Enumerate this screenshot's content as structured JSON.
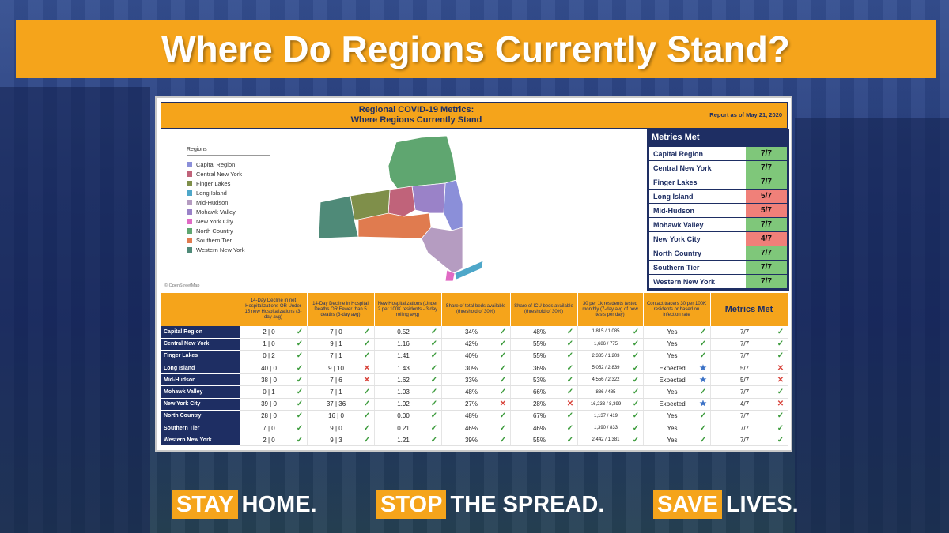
{
  "banner": {
    "title": "Where Do Regions Currently Stand?"
  },
  "card": {
    "title_line1": "Regional COVID-19 Metrics:",
    "title_line2": "Where Regions Currently Stand",
    "report_date": "Report as of May 21, 2020",
    "osm_credit": "© OpenStreetMap"
  },
  "legend": {
    "title": "Regions",
    "items": [
      {
        "label": "Capital Region",
        "color": "#8b8fd9"
      },
      {
        "label": "Central New York",
        "color": "#c0637a"
      },
      {
        "label": "Finger Lakes",
        "color": "#7f8f4a"
      },
      {
        "label": "Long Island",
        "color": "#4ea7c9"
      },
      {
        "label": "Mid-Hudson",
        "color": "#b59cc1"
      },
      {
        "label": "Mohawk Valley",
        "color": "#9a82c8"
      },
      {
        "label": "New York City",
        "color": "#e06ac4"
      },
      {
        "label": "North Country",
        "color": "#5fa670"
      },
      {
        "label": "Southern Tier",
        "color": "#e07b4f"
      },
      {
        "label": "Western New York",
        "color": "#4f8a78"
      }
    ]
  },
  "metrics_panel": {
    "title": "Metrics Met",
    "rows": [
      {
        "name": "Capital Region",
        "value": "7/7",
        "status": "ok"
      },
      {
        "name": "Central New York",
        "value": "7/7",
        "status": "ok"
      },
      {
        "name": "Finger Lakes",
        "value": "7/7",
        "status": "ok"
      },
      {
        "name": "Long Island",
        "value": "5/7",
        "status": "bad"
      },
      {
        "name": "Mid-Hudson",
        "value": "5/7",
        "status": "bad"
      },
      {
        "name": "Mohawk Valley",
        "value": "7/7",
        "status": "ok"
      },
      {
        "name": "New York City",
        "value": "4/7",
        "status": "bad"
      },
      {
        "name": "North Country",
        "value": "7/7",
        "status": "ok"
      },
      {
        "name": "Southern Tier",
        "value": "7/7",
        "status": "ok"
      },
      {
        "name": "Western New York",
        "value": "7/7",
        "status": "ok"
      }
    ]
  },
  "table": {
    "headers": [
      "14-Day Decline in net Hospitalizations OR Under 15 new Hospitalizations (3-day avg)",
      "14-Day Decline in Hospital Deaths OR Fewer than 5 deaths (3-day avg)",
      "New Hospitalizations (Under 2 per 100K residents - 3 day rolling avg)",
      "Share of total beds available (threshold of 30%)",
      "Share of ICU beds available (threshold of 30%)",
      "30 per 1k residents tested monthly (7-day avg of new tests per day)",
      "Contact tracers 30 per 100K residents or based on infection rate",
      "Metrics Met"
    ],
    "rows": [
      {
        "region": "Capital Region",
        "cells": [
          [
            "2 | 0",
            "check"
          ],
          [
            "7 | 0",
            "check"
          ],
          [
            "0.52",
            "check"
          ],
          [
            "34%",
            "check"
          ],
          [
            "48%",
            "check"
          ],
          [
            "1,815 / 1,085",
            "check"
          ],
          [
            "Yes",
            "check"
          ],
          [
            "7/7",
            "check"
          ]
        ]
      },
      {
        "region": "Central New York",
        "cells": [
          [
            "1 | 0",
            "check"
          ],
          [
            "9 | 1",
            "check"
          ],
          [
            "1.16",
            "check"
          ],
          [
            "42%",
            "check"
          ],
          [
            "55%",
            "check"
          ],
          [
            "1,686 / 775",
            "check"
          ],
          [
            "Yes",
            "check"
          ],
          [
            "7/7",
            "check"
          ]
        ]
      },
      {
        "region": "Finger Lakes",
        "cells": [
          [
            "0 | 2",
            "check"
          ],
          [
            "7 | 1",
            "check"
          ],
          [
            "1.41",
            "check"
          ],
          [
            "40%",
            "check"
          ],
          [
            "55%",
            "check"
          ],
          [
            "2,335 / 1,203",
            "check"
          ],
          [
            "Yes",
            "check"
          ],
          [
            "7/7",
            "check"
          ]
        ]
      },
      {
        "region": "Long Island",
        "cells": [
          [
            "40 | 0",
            "check"
          ],
          [
            "9 | 10",
            "cross"
          ],
          [
            "1.43",
            "check"
          ],
          [
            "30%",
            "check"
          ],
          [
            "36%",
            "check"
          ],
          [
            "5,052 / 2,839",
            "check"
          ],
          [
            "Expected",
            "star"
          ],
          [
            "5/7",
            "cross"
          ]
        ]
      },
      {
        "region": "Mid-Hudson",
        "cells": [
          [
            "38 | 0",
            "check"
          ],
          [
            "7 | 6",
            "cross"
          ],
          [
            "1.62",
            "check"
          ],
          [
            "33%",
            "check"
          ],
          [
            "53%",
            "check"
          ],
          [
            "4,556 / 2,322",
            "check"
          ],
          [
            "Expected",
            "star"
          ],
          [
            "5/7",
            "cross"
          ]
        ]
      },
      {
        "region": "Mohawk Valley",
        "cells": [
          [
            "0 | 1",
            "check"
          ],
          [
            "7 | 1",
            "check"
          ],
          [
            "1.03",
            "check"
          ],
          [
            "48%",
            "check"
          ],
          [
            "66%",
            "check"
          ],
          [
            "886 / 485",
            "check"
          ],
          [
            "Yes",
            "check"
          ],
          [
            "7/7",
            "check"
          ]
        ]
      },
      {
        "region": "New York City",
        "cells": [
          [
            "39 | 0",
            "check"
          ],
          [
            "37 | 36",
            "check"
          ],
          [
            "1.92",
            "check"
          ],
          [
            "27%",
            "cross"
          ],
          [
            "28%",
            "cross"
          ],
          [
            "16,233 / 8,399",
            "check"
          ],
          [
            "Expected",
            "star"
          ],
          [
            "4/7",
            "cross"
          ]
        ]
      },
      {
        "region": "North Country",
        "cells": [
          [
            "28 | 0",
            "check"
          ],
          [
            "16 | 0",
            "check"
          ],
          [
            "0.00",
            "check"
          ],
          [
            "48%",
            "check"
          ],
          [
            "67%",
            "check"
          ],
          [
            "1,137 / 419",
            "check"
          ],
          [
            "Yes",
            "check"
          ],
          [
            "7/7",
            "check"
          ]
        ]
      },
      {
        "region": "Southern Tier",
        "cells": [
          [
            "7 | 0",
            "check"
          ],
          [
            "9 | 0",
            "check"
          ],
          [
            "0.21",
            "check"
          ],
          [
            "46%",
            "check"
          ],
          [
            "46%",
            "check"
          ],
          [
            "1,390 / 833",
            "check"
          ],
          [
            "Yes",
            "check"
          ],
          [
            "7/7",
            "check"
          ]
        ]
      },
      {
        "region": "Western New York",
        "cells": [
          [
            "2 | 0",
            "check"
          ],
          [
            "9 | 3",
            "check"
          ],
          [
            "1.21",
            "check"
          ],
          [
            "39%",
            "check"
          ],
          [
            "55%",
            "check"
          ],
          [
            "2,442 / 1,381",
            "check"
          ],
          [
            "Yes",
            "check"
          ],
          [
            "7/7",
            "check"
          ]
        ]
      }
    ]
  },
  "footer": {
    "slogans": [
      {
        "highlight": "STAY",
        "rest": "HOME."
      },
      {
        "highlight": "STOP",
        "rest": "THE SPREAD."
      },
      {
        "highlight": "SAVE",
        "rest": "LIVES."
      }
    ]
  },
  "colors": {
    "accent": "#f5a41b",
    "navy": "#1e2e63",
    "ok": "#7fc77a",
    "bad": "#f08079"
  }
}
